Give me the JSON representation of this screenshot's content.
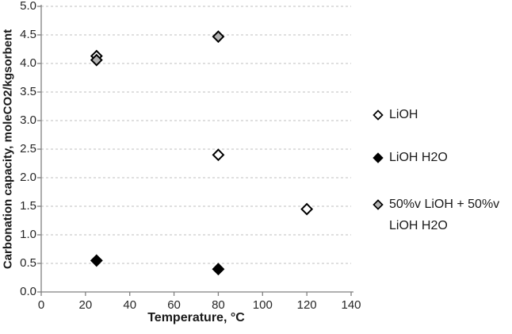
{
  "chart_data": {
    "type": "scatter",
    "title": "",
    "xlabel": "Temperature, °C",
    "ylabel": "Carbonation capacity, moleCO2/kgsorbent",
    "xlim": [
      0,
      140
    ],
    "ylim": [
      0,
      5
    ],
    "x_ticks": [
      0,
      20,
      40,
      60,
      80,
      100,
      120,
      140
    ],
    "y_ticks": [
      0.0,
      0.5,
      1.0,
      1.5,
      2.0,
      2.5,
      3.0,
      3.5,
      4.0,
      4.5,
      5.0
    ],
    "grid": "horizontal-dashed",
    "legend_position": "right",
    "series": [
      {
        "name": "LiOH",
        "marker": "diamond",
        "fill": "#ffffff",
        "stroke": "#000000",
        "points": [
          [
            25,
            4.13
          ],
          [
            80,
            2.4
          ],
          [
            120,
            1.45
          ]
        ]
      },
      {
        "name": "LiOH H2O",
        "marker": "diamond",
        "fill": "#000000",
        "stroke": "#000000",
        "points": [
          [
            25,
            0.55
          ],
          [
            80,
            0.4
          ]
        ]
      },
      {
        "name": "50%v LiOH + 50%v LiOH H2O",
        "marker": "diamond",
        "fill": "#b3b3b3",
        "stroke": "#000000",
        "points": [
          [
            25,
            4.06
          ],
          [
            80,
            4.47
          ]
        ]
      }
    ]
  },
  "legend": {
    "items": [
      {
        "lines": [
          "LiOH"
        ],
        "series_index": 0
      },
      {
        "lines": [
          "LiOH H2O"
        ],
        "series_index": 1
      },
      {
        "lines": [
          "50%v LiOH + 50%v",
          "LiOH H2O"
        ],
        "series_index": 2
      }
    ]
  },
  "colors": {
    "gridline": "#bfbfbf",
    "axis_line": "#808080",
    "tick_text": "#262626",
    "marker_stroke": "#000000",
    "gray_fill": "#b3b3b3",
    "white_fill": "#ffffff",
    "black_fill": "#000000"
  }
}
